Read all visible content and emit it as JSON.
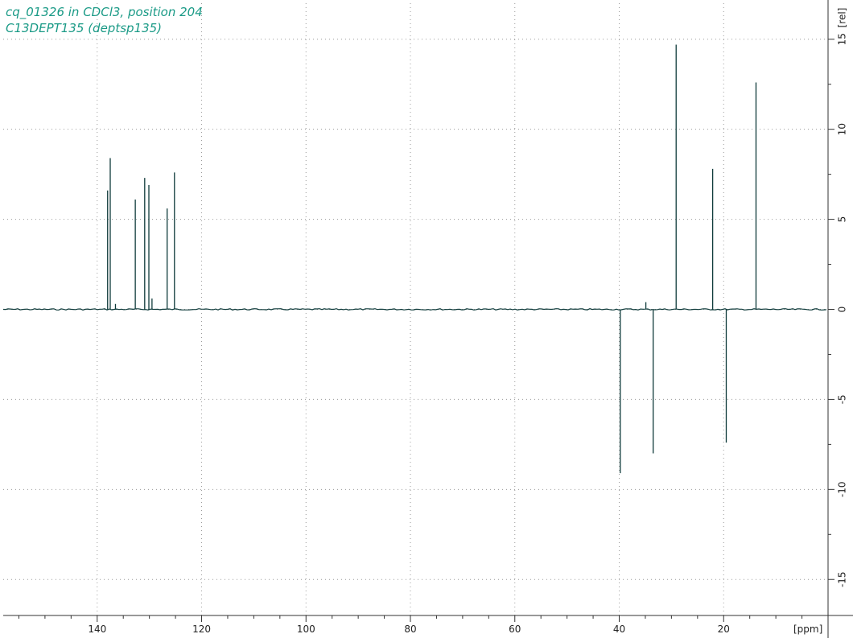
{
  "header": {
    "line1": "cq_01326 in CDCl3, position 204",
    "line2": "C13DEPT135 (deptsp135)"
  },
  "colors": {
    "spectrum": "#0e3a3a",
    "title": "#1a9a86",
    "grid": "#9a9a9a",
    "axis": "#333333"
  },
  "chart_data": {
    "type": "line",
    "title": "",
    "xlabel": "[ppm]",
    "ylabel": "[rel]",
    "x_reversed": true,
    "xlim": [
      158,
      0
    ],
    "ylim": [
      -17,
      17
    ],
    "x_ticks": [
      140,
      120,
      100,
      80,
      60,
      40,
      20
    ],
    "y_ticks": [
      15,
      10,
      5,
      0,
      -5,
      -10,
      -15
    ],
    "x_tick_labels": [
      "140",
      "120",
      "100",
      "80",
      "60",
      "40",
      "20"
    ],
    "y_tick_labels": [
      "15",
      "10",
      "5",
      "0",
      "-5",
      "-10",
      "-15"
    ],
    "grid": true,
    "peaks": [
      {
        "ppm": 138.0,
        "intensity": 6.6
      },
      {
        "ppm": 137.5,
        "intensity": 8.4
      },
      {
        "ppm": 132.7,
        "intensity": 6.1
      },
      {
        "ppm": 130.9,
        "intensity": 7.3
      },
      {
        "ppm": 130.1,
        "intensity": 6.9
      },
      {
        "ppm": 126.6,
        "intensity": 5.6
      },
      {
        "ppm": 125.2,
        "intensity": 7.6
      },
      {
        "ppm": 136.5,
        "intensity": 0.3
      },
      {
        "ppm": 129.5,
        "intensity": 0.6
      },
      {
        "ppm": 39.8,
        "intensity": -9.1
      },
      {
        "ppm": 33.5,
        "intensity": -8.0
      },
      {
        "ppm": 34.9,
        "intensity": 0.4
      },
      {
        "ppm": 29.1,
        "intensity": 14.7
      },
      {
        "ppm": 22.1,
        "intensity": 7.8
      },
      {
        "ppm": 19.5,
        "intensity": -7.4
      },
      {
        "ppm": 13.8,
        "intensity": 12.6
      }
    ]
  }
}
